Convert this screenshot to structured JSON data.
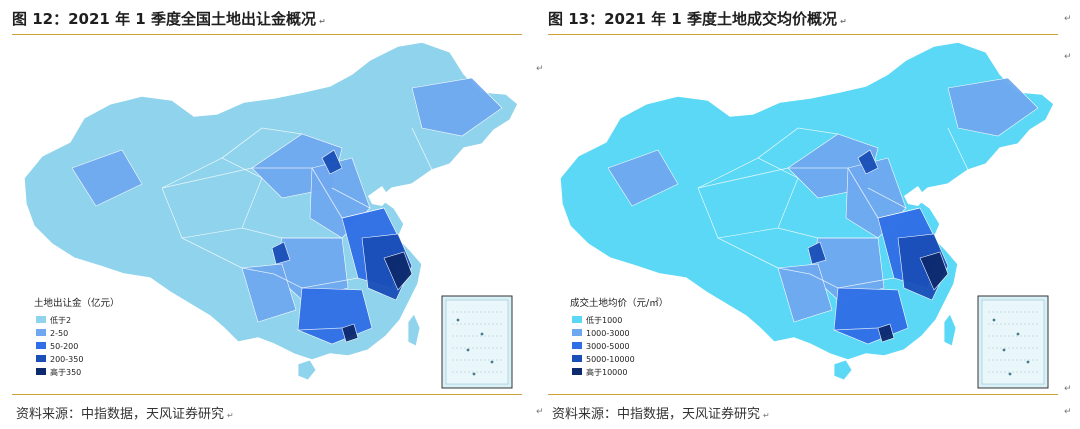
{
  "left": {
    "title": "图 12：2021 年 1 季度全国土地出让金概况",
    "source": "资料来源：中指数据，天风证券研究",
    "chart_data": {
      "type": "choropleth-map",
      "legend_title": "土地出让金（亿元）",
      "legend": [
        {
          "label": "低于2",
          "color": "#8fd3ec"
        },
        {
          "label": "2-50",
          "color": "#6fa8f0"
        },
        {
          "label": "50-200",
          "color": "#2f6ee6"
        },
        {
          "label": "200-350",
          "color": "#1a4fb8"
        },
        {
          "label": "高于350",
          "color": "#0d2a6e"
        }
      ],
      "base_color": "#8fd3ec"
    }
  },
  "right": {
    "title": "图 13：2021 年 1 季度土地成交均价概况",
    "source": "资料来源：中指数据，天风证券研究",
    "chart_data": {
      "type": "choropleth-map",
      "legend_title": "成交土地均价（元/㎡）",
      "legend": [
        {
          "label": "低于1000",
          "color": "#5ad8f5"
        },
        {
          "label": "1000-3000",
          "color": "#6fa8f0"
        },
        {
          "label": "3000-5000",
          "color": "#2f6ee6"
        },
        {
          "label": "5000-10000",
          "color": "#1a4fb8"
        },
        {
          "label": "高于10000",
          "color": "#0d2a6e"
        }
      ],
      "base_color": "#5ad8f5"
    }
  },
  "marks": {
    "return": "↵"
  }
}
